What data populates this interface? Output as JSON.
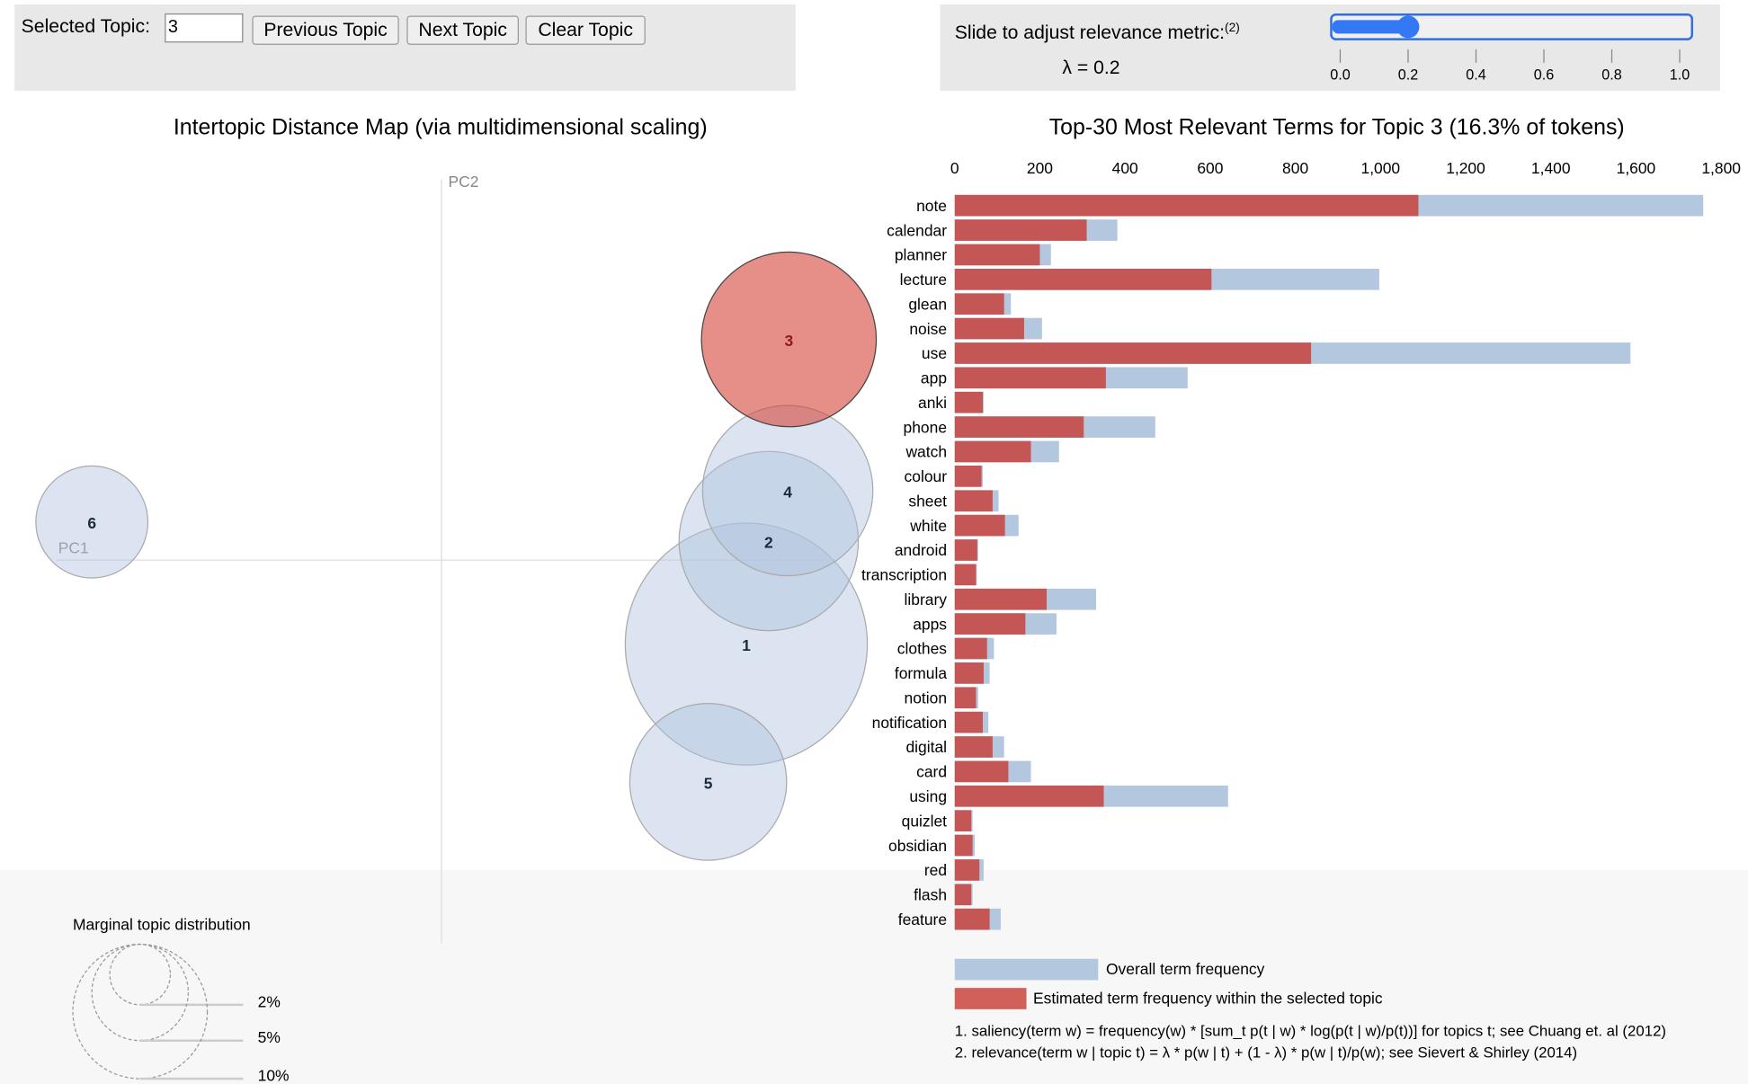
{
  "controls": {
    "selected_topic_label": "Selected Topic:",
    "selected_topic_value": "3",
    "previous_label": "Previous Topic",
    "next_label": "Next Topic",
    "clear_label": "Clear Topic",
    "slider_label": "Slide to adjust relevance metric:",
    "slider_footnote": "(2)",
    "lambda_text": "λ = 0.2",
    "lambda_value": 0.2,
    "slider_ticks": [
      "0.0",
      "0.2",
      "0.4",
      "0.6",
      "0.8",
      "1.0"
    ]
  },
  "colors": {
    "selected_topic": "#d6443a",
    "topic": "#b0c4de",
    "overall_bar": "#b3c8df",
    "topic_bar": "#c45755",
    "legend_red": "#d1605a"
  },
  "chart_data": [
    {
      "type": "scatter",
      "title": "Intertopic Distance Map (via multidimensional scaling)",
      "xlabel": "PC1",
      "ylabel": "PC2",
      "topics": [
        "1",
        "2",
        "3",
        "4",
        "5",
        "6"
      ],
      "selected_topic": "3",
      "legend_title": "Marginal topic distribution",
      "legend_sizes": [
        "2%",
        "5%",
        "10%"
      ]
    },
    {
      "type": "bar",
      "orientation": "horizontal",
      "title": "Top-30 Most Relevant Terms for Topic 3 (16.3% of tokens)",
      "xlim": [
        0,
        1800
      ],
      "xticks": [
        "0",
        "200",
        "400",
        "600",
        "800",
        "1,000",
        "1,200",
        "1,400",
        "1,600",
        "1,800"
      ],
      "categories": [
        "note",
        "calendar",
        "planner",
        "lecture",
        "glean",
        "noise",
        "use",
        "app",
        "anki",
        "phone",
        "watch",
        "colour",
        "sheet",
        "white",
        "android",
        "transcription",
        "library",
        "apps",
        "clothes",
        "formula",
        "notion",
        "notification",
        "digital",
        "card",
        "using",
        "quizlet",
        "obsidian",
        "red",
        "flash",
        "feature"
      ],
      "series": [
        {
          "name": "Overall term frequency",
          "values": [
            1758,
            382,
            226,
            997,
            132,
            205,
            1587,
            547,
            68,
            471,
            245,
            66,
            103,
            150,
            55,
            52,
            332,
            239,
            92,
            82,
            55,
            79,
            116,
            179,
            642,
            42,
            47,
            68,
            42,
            108
          ]
        },
        {
          "name": "Estimated term frequency within the selected topic",
          "values": [
            1089,
            310,
            200,
            603,
            116,
            163,
            837,
            355,
            66,
            303,
            179,
            63,
            89,
            118,
            53,
            50,
            216,
            166,
            76,
            68,
            50,
            66,
            89,
            126,
            350,
            39,
            42,
            58,
            39,
            82
          ]
        }
      ],
      "footnotes": [
        "1. saliency(term w) = frequency(w) * [sum_t p(t | w) * log(p(t | w)/p(t))] for topics t; see Chuang et. al (2012)",
        "2. relevance(term w | topic t) = λ * p(w | t) + (1 - λ) * p(w | t)/p(w); see Sievert & Shirley (2014)"
      ]
    }
  ]
}
